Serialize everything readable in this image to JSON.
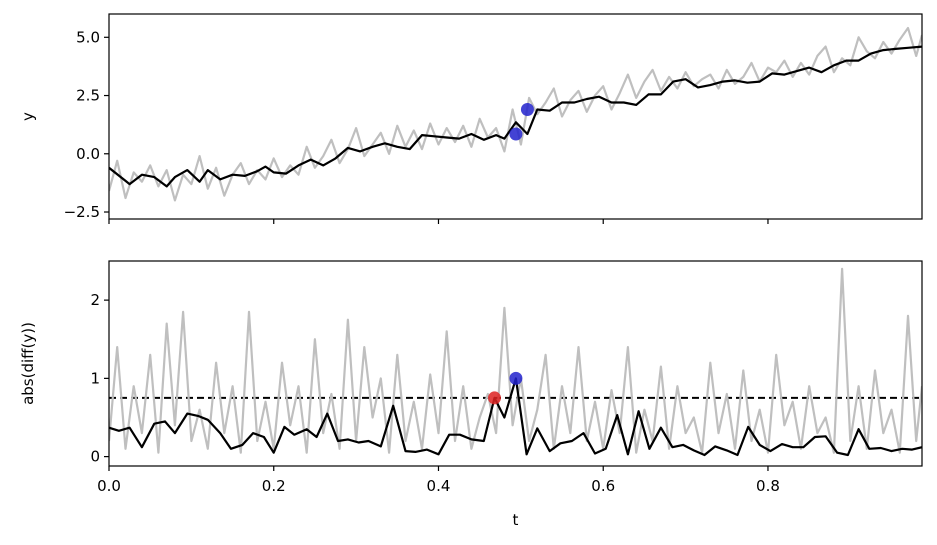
{
  "chart_data": [
    {
      "type": "line",
      "panel": "top",
      "xlabel": "",
      "ylabel": "y",
      "xlim": [
        0.0,
        0.987
      ],
      "ylim": [
        -2.8,
        6.0
      ],
      "yticks": [
        -2.5,
        0.0,
        2.5,
        5.0
      ],
      "ytick_labels": [
        "−2.5",
        "0.0",
        "2.5",
        "5.0"
      ],
      "xticks": [
        0.0,
        0.2,
        0.4,
        0.6,
        0.8
      ],
      "show_xtick_labels": false,
      "grid": false,
      "series": [
        {
          "role": "raw",
          "color": "#bfbfbf",
          "x": [
            0.0,
            0.01,
            0.02,
            0.03,
            0.04,
            0.05,
            0.06,
            0.07,
            0.08,
            0.09,
            0.1,
            0.11,
            0.12,
            0.13,
            0.14,
            0.15,
            0.16,
            0.17,
            0.18,
            0.19,
            0.2,
            0.21,
            0.22,
            0.23,
            0.24,
            0.25,
            0.26,
            0.27,
            0.28,
            0.29,
            0.3,
            0.31,
            0.32,
            0.33,
            0.34,
            0.35,
            0.36,
            0.37,
            0.38,
            0.39,
            0.4,
            0.41,
            0.42,
            0.43,
            0.44,
            0.45,
            0.46,
            0.47,
            0.48,
            0.49,
            0.5,
            0.51,
            0.52,
            0.53,
            0.54,
            0.55,
            0.56,
            0.57,
            0.58,
            0.59,
            0.6,
            0.61,
            0.62,
            0.63,
            0.64,
            0.65,
            0.66,
            0.67,
            0.68,
            0.69,
            0.7,
            0.71,
            0.72,
            0.73,
            0.74,
            0.75,
            0.76,
            0.77,
            0.78,
            0.79,
            0.8,
            0.81,
            0.82,
            0.83,
            0.84,
            0.85,
            0.86,
            0.87,
            0.88,
            0.89,
            0.9,
            0.91,
            0.92,
            0.93,
            0.94,
            0.95,
            0.96,
            0.97,
            0.98,
            0.987
          ],
          "y": [
            -1.6,
            -0.3,
            -1.9,
            -0.8,
            -1.2,
            -0.5,
            -1.4,
            -0.7,
            -2.0,
            -0.9,
            -1.3,
            -0.1,
            -1.5,
            -0.6,
            -1.8,
            -0.9,
            -0.4,
            -1.3,
            -0.7,
            -1.1,
            -0.2,
            -1.0,
            -0.5,
            -0.9,
            0.3,
            -0.6,
            -0.1,
            0.6,
            -0.4,
            0.2,
            1.1,
            -0.1,
            0.4,
            0.9,
            0.0,
            1.2,
            0.3,
            1.0,
            0.2,
            1.3,
            0.4,
            1.1,
            0.5,
            1.2,
            0.3,
            1.5,
            0.7,
            1.1,
            0.1,
            1.9,
            0.4,
            2.4,
            1.7,
            2.2,
            2.8,
            1.6,
            2.3,
            2.7,
            1.8,
            2.5,
            2.9,
            1.9,
            2.6,
            3.4,
            2.4,
            3.1,
            3.6,
            2.7,
            3.3,
            2.8,
            3.5,
            2.9,
            3.2,
            3.4,
            2.8,
            3.6,
            3.0,
            3.3,
            3.9,
            3.1,
            3.7,
            3.5,
            4.0,
            3.3,
            3.9,
            3.4,
            4.2,
            4.6,
            3.5,
            4.1,
            3.8,
            5.0,
            4.4,
            4.1,
            4.8,
            4.3,
            4.9,
            5.4,
            4.2,
            5.1
          ]
        },
        {
          "role": "smoothed",
          "color": "#000000",
          "x": [
            0.0,
            0.025,
            0.04,
            0.055,
            0.07,
            0.08,
            0.095,
            0.11,
            0.12,
            0.135,
            0.15,
            0.165,
            0.18,
            0.19,
            0.2,
            0.215,
            0.23,
            0.245,
            0.26,
            0.275,
            0.29,
            0.305,
            0.32,
            0.335,
            0.35,
            0.365,
            0.38,
            0.395,
            0.41,
            0.425,
            0.44,
            0.455,
            0.47,
            0.48,
            0.494,
            0.508,
            0.52,
            0.535,
            0.55,
            0.565,
            0.58,
            0.595,
            0.61,
            0.625,
            0.64,
            0.655,
            0.67,
            0.685,
            0.7,
            0.715,
            0.73,
            0.745,
            0.76,
            0.775,
            0.79,
            0.805,
            0.82,
            0.835,
            0.85,
            0.865,
            0.88,
            0.895,
            0.91,
            0.925,
            0.94,
            0.955,
            0.97,
            0.987
          ],
          "y": [
            -0.6,
            -1.3,
            -0.9,
            -1.0,
            -1.4,
            -1.0,
            -0.7,
            -1.2,
            -0.7,
            -1.1,
            -0.9,
            -0.95,
            -0.75,
            -0.55,
            -0.8,
            -0.85,
            -0.5,
            -0.25,
            -0.5,
            -0.2,
            0.25,
            0.1,
            0.3,
            0.45,
            0.3,
            0.2,
            0.8,
            0.75,
            0.7,
            0.65,
            0.85,
            0.6,
            0.8,
            0.65,
            1.35,
            0.85,
            1.9,
            1.85,
            2.2,
            2.2,
            2.35,
            2.45,
            2.2,
            2.2,
            2.1,
            2.55,
            2.55,
            3.1,
            3.2,
            2.85,
            2.95,
            3.1,
            3.15,
            3.05,
            3.1,
            3.45,
            3.4,
            3.55,
            3.7,
            3.5,
            3.8,
            4.0,
            4.0,
            4.3,
            4.45,
            4.5,
            4.55,
            4.6
          ]
        }
      ],
      "markers": [
        {
          "x": 0.494,
          "y": 0.85,
          "color": "#2222cc"
        },
        {
          "x": 0.508,
          "y": 1.9,
          "color": "#2222cc"
        }
      ]
    },
    {
      "type": "line",
      "panel": "bottom",
      "xlabel": "t",
      "ylabel": "abs(diff(y))",
      "xlim": [
        0.0,
        0.987
      ],
      "ylim": [
        -0.12,
        2.5
      ],
      "yticks": [
        0,
        1,
        2
      ],
      "ytick_labels": [
        "0",
        "1",
        "2"
      ],
      "xticks": [
        0.0,
        0.2,
        0.4,
        0.6,
        0.8
      ],
      "xtick_labels": [
        "0.0",
        "0.2",
        "0.4",
        "0.6",
        "0.8"
      ],
      "grid": false,
      "threshold": {
        "y": 0.75,
        "style": "dashed",
        "color": "#000000"
      },
      "series": [
        {
          "role": "raw",
          "color": "#bfbfbf",
          "x": [
            0.0,
            0.01,
            0.02,
            0.03,
            0.04,
            0.05,
            0.06,
            0.07,
            0.08,
            0.09,
            0.1,
            0.11,
            0.12,
            0.13,
            0.14,
            0.15,
            0.16,
            0.17,
            0.18,
            0.19,
            0.2,
            0.21,
            0.22,
            0.23,
            0.24,
            0.25,
            0.26,
            0.27,
            0.28,
            0.29,
            0.3,
            0.31,
            0.32,
            0.33,
            0.34,
            0.35,
            0.36,
            0.37,
            0.38,
            0.39,
            0.4,
            0.41,
            0.42,
            0.43,
            0.44,
            0.45,
            0.46,
            0.47,
            0.48,
            0.49,
            0.5,
            0.51,
            0.52,
            0.53,
            0.54,
            0.55,
            0.56,
            0.57,
            0.58,
            0.59,
            0.6,
            0.61,
            0.62,
            0.63,
            0.64,
            0.65,
            0.66,
            0.67,
            0.68,
            0.69,
            0.7,
            0.71,
            0.72,
            0.73,
            0.74,
            0.75,
            0.76,
            0.77,
            0.78,
            0.79,
            0.8,
            0.81,
            0.82,
            0.83,
            0.84,
            0.85,
            0.86,
            0.87,
            0.88,
            0.89,
            0.9,
            0.91,
            0.92,
            0.93,
            0.94,
            0.95,
            0.96,
            0.97,
            0.98,
            0.987
          ],
          "y": [
            0.2,
            1.4,
            0.1,
            0.9,
            0.3,
            1.3,
            0.05,
            1.7,
            0.4,
            1.85,
            0.2,
            0.6,
            0.1,
            1.2,
            0.3,
            0.9,
            0.05,
            1.85,
            0.2,
            0.7,
            0.1,
            1.2,
            0.4,
            0.9,
            0.05,
            1.5,
            0.3,
            0.8,
            0.1,
            1.75,
            0.2,
            1.4,
            0.5,
            1.0,
            0.05,
            1.3,
            0.2,
            0.7,
            0.1,
            1.05,
            0.3,
            1.6,
            0.2,
            0.9,
            0.1,
            0.5,
            0.8,
            0.3,
            1.9,
            0.4,
            1.0,
            0.2,
            0.6,
            1.3,
            0.1,
            0.9,
            0.3,
            1.4,
            0.2,
            0.7,
            0.1,
            0.85,
            0.3,
            1.4,
            0.05,
            0.6,
            0.2,
            1.15,
            0.1,
            0.9,
            0.3,
            0.5,
            0.05,
            1.2,
            0.3,
            0.8,
            0.1,
            1.1,
            0.2,
            0.6,
            0.05,
            1.3,
            0.4,
            0.7,
            0.1,
            0.9,
            0.3,
            0.5,
            0.05,
            2.4,
            0.2,
            0.9,
            0.1,
            1.1,
            0.3,
            0.6,
            0.05,
            1.8,
            0.2,
            0.9
          ]
        },
        {
          "role": "smoothed",
          "color": "#000000",
          "x": [
            0.0,
            0.012,
            0.025,
            0.04,
            0.055,
            0.068,
            0.08,
            0.095,
            0.108,
            0.12,
            0.135,
            0.148,
            0.162,
            0.175,
            0.188,
            0.2,
            0.213,
            0.225,
            0.24,
            0.252,
            0.265,
            0.278,
            0.29,
            0.303,
            0.315,
            0.33,
            0.345,
            0.36,
            0.372,
            0.386,
            0.4,
            0.413,
            0.426,
            0.44,
            0.455,
            0.468,
            0.48,
            0.494,
            0.507,
            0.52,
            0.535,
            0.548,
            0.562,
            0.576,
            0.59,
            0.603,
            0.617,
            0.63,
            0.643,
            0.656,
            0.67,
            0.684,
            0.697,
            0.71,
            0.723,
            0.736,
            0.75,
            0.763,
            0.776,
            0.79,
            0.803,
            0.817,
            0.83,
            0.843,
            0.857,
            0.87,
            0.884,
            0.897,
            0.91,
            0.923,
            0.937,
            0.95,
            0.963,
            0.975,
            0.987
          ],
          "y": [
            0.37,
            0.33,
            0.37,
            0.12,
            0.42,
            0.45,
            0.3,
            0.55,
            0.52,
            0.47,
            0.3,
            0.1,
            0.15,
            0.3,
            0.25,
            0.05,
            0.38,
            0.28,
            0.35,
            0.25,
            0.55,
            0.2,
            0.22,
            0.18,
            0.2,
            0.13,
            0.65,
            0.07,
            0.06,
            0.09,
            0.03,
            0.28,
            0.28,
            0.22,
            0.2,
            0.75,
            0.5,
            1.0,
            0.03,
            0.36,
            0.07,
            0.17,
            0.2,
            0.3,
            0.04,
            0.1,
            0.53,
            0.03,
            0.58,
            0.1,
            0.37,
            0.12,
            0.15,
            0.08,
            0.02,
            0.13,
            0.08,
            0.02,
            0.38,
            0.15,
            0.07,
            0.16,
            0.12,
            0.12,
            0.25,
            0.26,
            0.05,
            0.02,
            0.35,
            0.1,
            0.11,
            0.07,
            0.1,
            0.09,
            0.12
          ]
        }
      ],
      "markers": [
        {
          "x": 0.468,
          "y": 0.75,
          "color": "#dd2222"
        },
        {
          "x": 0.494,
          "y": 1.0,
          "color": "#2222cc"
        }
      ]
    }
  ]
}
